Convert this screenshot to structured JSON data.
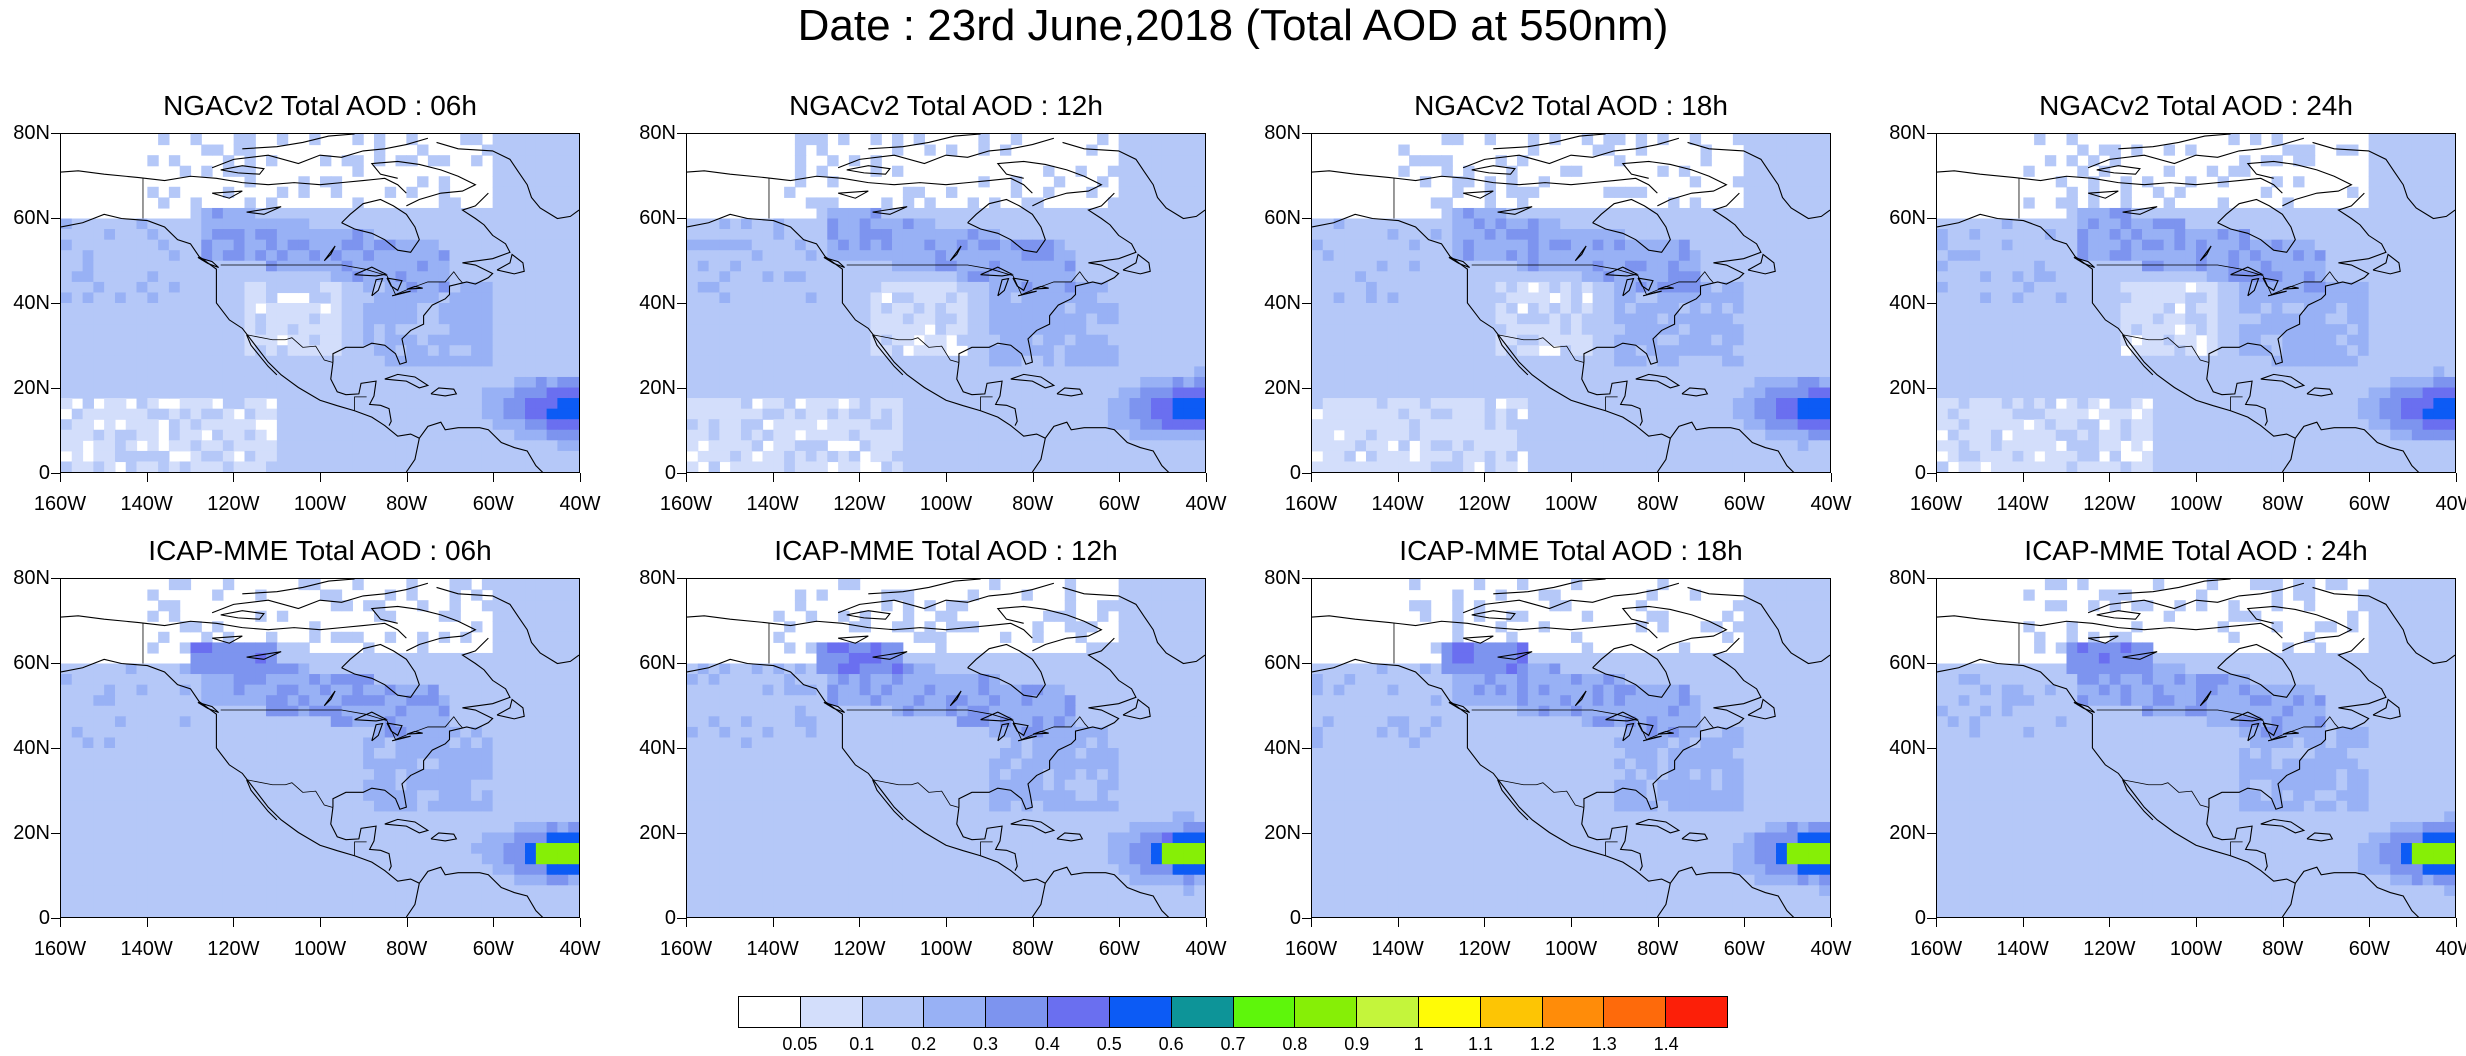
{
  "figure": {
    "title": "Date : 23rd June,2018 (Total AOD at 550nm)"
  },
  "axes": {
    "y_ticks": [
      "80N",
      "60N",
      "40N",
      "20N",
      "0"
    ],
    "y_values": [
      80,
      60,
      40,
      20,
      0
    ],
    "x_ticks": [
      "160W",
      "140W",
      "120W",
      "100W",
      "80W",
      "60W",
      "40W"
    ],
    "x_values": [
      -160,
      -140,
      -120,
      -100,
      -80,
      -60,
      -40
    ],
    "lon_range": [
      -160,
      -40
    ],
    "lat_range": [
      0,
      80
    ]
  },
  "panels": [
    {
      "title": "NGACv2 Total AOD : 06h",
      "model": "NGACv2",
      "hour": "06h"
    },
    {
      "title": "NGACv2 Total AOD : 12h",
      "model": "NGACv2",
      "hour": "12h"
    },
    {
      "title": "NGACv2 Total AOD : 18h",
      "model": "NGACv2",
      "hour": "18h"
    },
    {
      "title": "NGACv2 Total AOD : 24h",
      "model": "NGACv2",
      "hour": "24h"
    },
    {
      "title": "ICAP-MME Total AOD : 06h",
      "model": "ICAP-MME",
      "hour": "06h"
    },
    {
      "title": "ICAP-MME Total AOD : 12h",
      "model": "ICAP-MME",
      "hour": "12h"
    },
    {
      "title": "ICAP-MME Total AOD : 18h",
      "model": "ICAP-MME",
      "hour": "18h"
    },
    {
      "title": "ICAP-MME Total AOD : 24h",
      "model": "ICAP-MME",
      "hour": "24h"
    }
  ],
  "colorbar": {
    "labels": [
      "0.05",
      "0.1",
      "0.2",
      "0.3",
      "0.4",
      "0.5",
      "0.6",
      "0.7",
      "0.8",
      "0.9",
      "1",
      "1.1",
      "1.2",
      "1.3",
      "1.4"
    ],
    "colors": [
      "#ffffff",
      "#d3defb",
      "#b5c8f8",
      "#98b1f5",
      "#7d94ef",
      "#6a6ff0",
      "#0c5bf5",
      "#0d9498",
      "#5ef60b",
      "#86ef06",
      "#c4f53b",
      "#fffb06",
      "#fdc504",
      "#ff8c09",
      "#fe6a0b",
      "#fc1f08"
    ]
  }
}
